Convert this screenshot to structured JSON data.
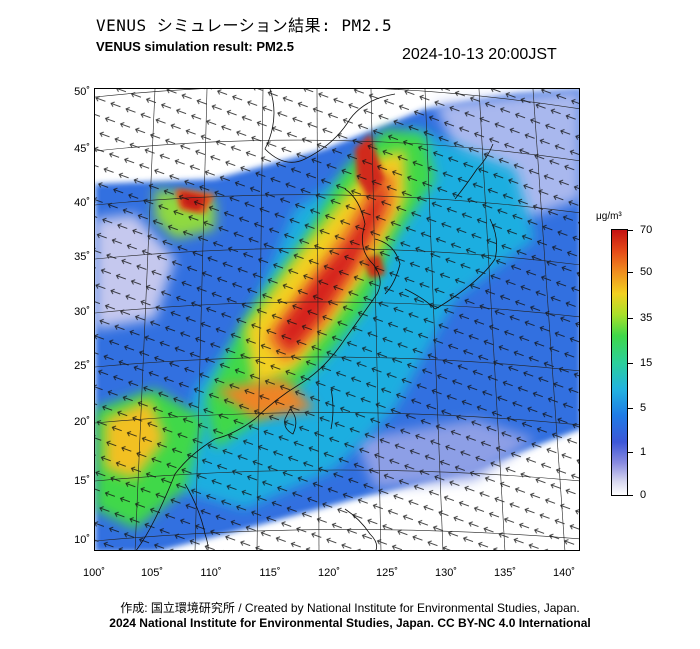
{
  "header": {
    "title_ja": "VENUS シミュレーション結果: PM2.5",
    "title_en": "VENUS simulation result: PM2.5",
    "timestamp": "2024-10-13 20:00JST"
  },
  "map": {
    "lat_labels": [
      "50˚",
      "45˚",
      "40˚",
      "35˚",
      "30˚",
      "25˚",
      "20˚",
      "15˚",
      "10˚"
    ],
    "lon_labels": [
      "100˚",
      "105˚",
      "110˚",
      "115˚",
      "120˚",
      "125˚",
      "130˚",
      "135˚",
      "140˚"
    ],
    "field_colors": {
      "no_data": "#ffffff",
      "very_low": "#d8d8f0",
      "low": "#3d57d8",
      "mid_low": "#22b3e0",
      "mid": "#3fd84a",
      "mid_high": "#f2d020",
      "high": "#e54a18",
      "very_high": "#c41212"
    }
  },
  "colorbar": {
    "unit": "μg/m³",
    "labels": [
      "70",
      "50",
      "35",
      "15",
      "5",
      "1",
      "0"
    ]
  },
  "footer": {
    "credit": "作成: 国立環境研究所 / Created by National Institute for Environmental Studies, Japan.",
    "copyright": "2024 National Institute for Environmental Studies, Japan. CC BY-NC 4.0 International"
  }
}
